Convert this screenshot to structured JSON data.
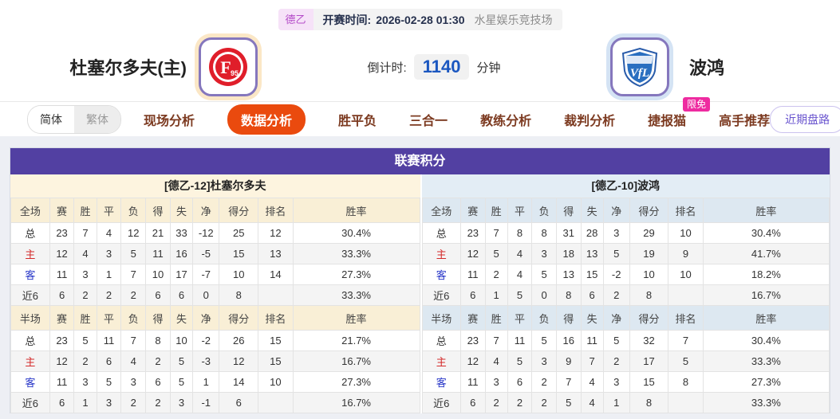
{
  "colors": {
    "header_purple": "#5240a2",
    "active_tab_orange": "#ea4a0e",
    "badge_pink": "#ee2ba0",
    "countdown_blue": "#1b57c0",
    "home_panel_cream": "#f9efd6",
    "away_panel_blue": "#dde8f1"
  },
  "match_header": {
    "league_badge": "德乙",
    "kickoff_label": "开赛时间:",
    "kickoff_time": "2026-02-28 01:30",
    "venue": "水星娱乐竞技场",
    "countdown_label": "倒计时:",
    "countdown_value": "1140",
    "countdown_unit": "分钟",
    "home": {
      "name": "杜塞尔多夫(主)",
      "logo_main": "F",
      "logo_sub": "95"
    },
    "away": {
      "name": "波鸿",
      "logo_main": "VfL"
    }
  },
  "nav": {
    "lang_simplified": "简体",
    "lang_traditional": "繁体",
    "tabs": [
      {
        "id": "live-analysis",
        "label": "现场分析",
        "active": false
      },
      {
        "id": "data-analysis",
        "label": "数据分析",
        "active": true
      },
      {
        "id": "win-draw-lose",
        "label": "胜平负",
        "active": false
      },
      {
        "id": "three-in-one",
        "label": "三合一",
        "active": false
      },
      {
        "id": "coach-analysis",
        "label": "教练分析",
        "active": false
      },
      {
        "id": "referee-analysis",
        "label": "裁判分析",
        "active": false
      },
      {
        "id": "jiebao-cat",
        "label": "捷报猫",
        "active": false,
        "badge": "限免"
      },
      {
        "id": "expert-picks",
        "label": "高手推荐",
        "active": false
      }
    ],
    "recent_button": "近期盘路"
  },
  "league_table": {
    "title": "联赛积分",
    "halves": [
      {
        "side": "home",
        "subtitle": "[德乙-12]杜塞尔多夫",
        "sections": [
          {
            "header": [
              "全场",
              "赛",
              "胜",
              "平",
              "负",
              "得",
              "失",
              "净",
              "得分",
              "排名",
              "胜率"
            ],
            "rows": [
              [
                "总",
                "23",
                "7",
                "4",
                "12",
                "21",
                "33",
                "-12",
                "25",
                "12",
                "30.4%"
              ],
              [
                "主",
                "12",
                "4",
                "3",
                "5",
                "11",
                "16",
                "-5",
                "15",
                "13",
                "33.3%"
              ],
              [
                "客",
                "11",
                "3",
                "1",
                "7",
                "10",
                "17",
                "-7",
                "10",
                "14",
                "27.3%"
              ],
              [
                "近6",
                "6",
                "2",
                "2",
                "2",
                "6",
                "6",
                "0",
                "8",
                "",
                "33.3%"
              ]
            ]
          },
          {
            "header": [
              "半场",
              "赛",
              "胜",
              "平",
              "负",
              "得",
              "失",
              "净",
              "得分",
              "排名",
              "胜率"
            ],
            "rows": [
              [
                "总",
                "23",
                "5",
                "11",
                "7",
                "8",
                "10",
                "-2",
                "26",
                "15",
                "21.7%"
              ],
              [
                "主",
                "12",
                "2",
                "6",
                "4",
                "2",
                "5",
                "-3",
                "12",
                "15",
                "16.7%"
              ],
              [
                "客",
                "11",
                "3",
                "5",
                "3",
                "6",
                "5",
                "1",
                "14",
                "10",
                "27.3%"
              ],
              [
                "近6",
                "6",
                "1",
                "3",
                "2",
                "2",
                "3",
                "-1",
                "6",
                "",
                "16.7%"
              ]
            ]
          }
        ]
      },
      {
        "side": "away",
        "subtitle": "[德乙-10]波鸿",
        "sections": [
          {
            "header": [
              "全场",
              "赛",
              "胜",
              "平",
              "负",
              "得",
              "失",
              "净",
              "得分",
              "排名",
              "胜率"
            ],
            "rows": [
              [
                "总",
                "23",
                "7",
                "8",
                "8",
                "31",
                "28",
                "3",
                "29",
                "10",
                "30.4%"
              ],
              [
                "主",
                "12",
                "5",
                "4",
                "3",
                "18",
                "13",
                "5",
                "19",
                "9",
                "41.7%"
              ],
              [
                "客",
                "11",
                "2",
                "4",
                "5",
                "13",
                "15",
                "-2",
                "10",
                "10",
                "18.2%"
              ],
              [
                "近6",
                "6",
                "1",
                "5",
                "0",
                "8",
                "6",
                "2",
                "8",
                "",
                "16.7%"
              ]
            ]
          },
          {
            "header": [
              "半场",
              "赛",
              "胜",
              "平",
              "负",
              "得",
              "失",
              "净",
              "得分",
              "排名",
              "胜率"
            ],
            "rows": [
              [
                "总",
                "23",
                "7",
                "11",
                "5",
                "16",
                "11",
                "5",
                "32",
                "7",
                "30.4%"
              ],
              [
                "主",
                "12",
                "4",
                "5",
                "3",
                "9",
                "7",
                "2",
                "17",
                "5",
                "33.3%"
              ],
              [
                "客",
                "11",
                "3",
                "6",
                "2",
                "7",
                "4",
                "3",
                "15",
                "8",
                "27.3%"
              ],
              [
                "近6",
                "6",
                "2",
                "2",
                "2",
                "5",
                "4",
                "1",
                "8",
                "",
                "33.3%"
              ]
            ]
          }
        ]
      }
    ]
  }
}
